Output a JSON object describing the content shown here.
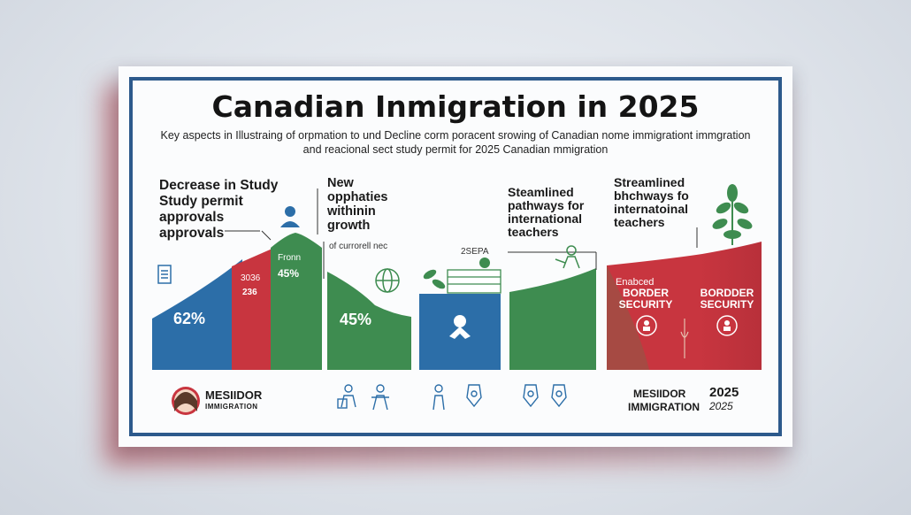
{
  "title": "Canadian Inmigration in 2025",
  "subtitle": "Key aspects in Illustraing of orpmation to und Decline corm poracent srowing of Canadian nome immigrationt immgration and reacional sect study permit for 2025 Canadian mmigration",
  "sections": {
    "study": {
      "label_lines": [
        "Decrease in Study",
        "Study permit",
        "approvals",
        "approvals"
      ],
      "pct": "62%"
    },
    "red_bar": {
      "label_top": "3036",
      "label_bottom": "236"
    },
    "green_bar": {
      "label_top": "Fronn",
      "label_pct": "45%"
    },
    "opportunities": {
      "label_lines": [
        "New",
        "opphaties",
        "withinin",
        "growth"
      ],
      "note": "of currorell nec",
      "pct": "45%"
    },
    "pathways_a": {
      "label_lines": [
        "Steamlined",
        "pathways for",
        "international",
        "teachers"
      ],
      "tag": "2SEPA"
    },
    "pathways_b": {
      "label_lines": [
        "Streamlined",
        "bhchways fo",
        "internatoinal",
        "teachers"
      ]
    },
    "security": {
      "sub_label": "Enabced",
      "left_line1": "BORDER",
      "left_line2": "SECURITY",
      "right_line1": "BORDDER",
      "right_line2": "SECURITY"
    }
  },
  "footer": {
    "left_brand_1": "MESIIDOR",
    "left_brand_2": "IMMIGRATION",
    "right_brand_1": "MESIIDOR",
    "right_year": "2025",
    "right_brand_2": "IMMIGRATION",
    "right_year_2": "2025"
  },
  "colors": {
    "blue": "#2c6ea8",
    "red": "#c8353f",
    "green": "#3e8c50",
    "frame": "#2d5a8c"
  }
}
